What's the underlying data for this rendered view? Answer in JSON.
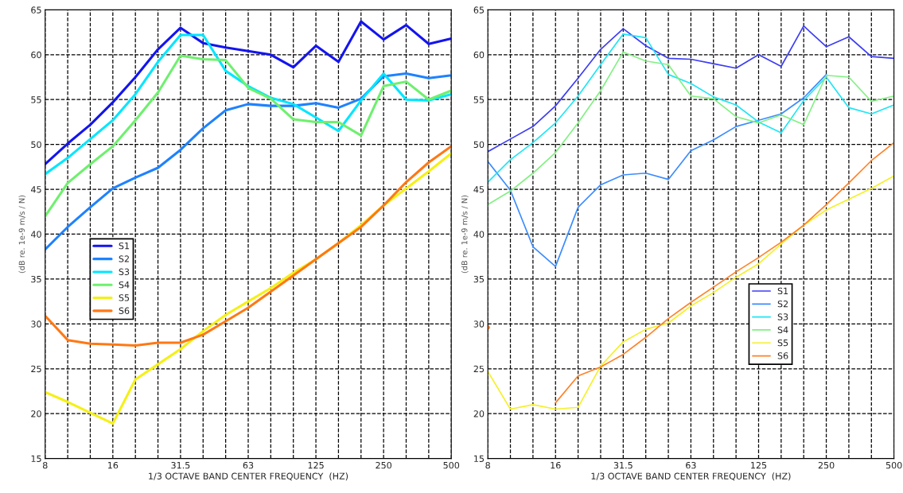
{
  "chart_data": [
    {
      "type": "line",
      "xlabel": "1/3 OCTAVE BAND CENTER FREQUENCY  (HZ)",
      "ylabel": "(dB re. 1e-9 m/s / N)",
      "categories": [
        "8",
        null,
        null,
        "16",
        null,
        null,
        "31.5",
        null,
        null,
        "63",
        null,
        null,
        "125",
        null,
        null,
        "250",
        null,
        null,
        "500"
      ],
      "ylim": [
        15,
        65
      ],
      "yticks": [
        15,
        20,
        25,
        30,
        35,
        40,
        45,
        50,
        55,
        60,
        65
      ],
      "grid": true,
      "legend": "left",
      "series": [
        {
          "name": "S1",
          "color": "#1414f0",
          "values": [
            47.8,
            50.1,
            52.2,
            54.7,
            57.5,
            60.6,
            63.0,
            61.3,
            60.8,
            60.4,
            60.0,
            58.6,
            61.0,
            59.2,
            63.7,
            61.7,
            63.3,
            61.2,
            61.8
          ]
        },
        {
          "name": "S2",
          "color": "#1e82ff",
          "values": [
            38.3,
            40.8,
            43.0,
            45.1,
            46.3,
            47.4,
            49.4,
            51.8,
            53.8,
            54.5,
            54.3,
            54.3,
            54.6,
            54.1,
            55.1,
            57.6,
            57.9,
            57.4,
            57.7
          ]
        },
        {
          "name": "S3",
          "color": "#00e6ff",
          "values": [
            46.7,
            48.5,
            50.6,
            52.7,
            55.6,
            59.2,
            62.2,
            62.2,
            58.2,
            56.5,
            55.2,
            54.5,
            53.0,
            51.5,
            54.9,
            57.9,
            55.0,
            54.9,
            55.6
          ]
        },
        {
          "name": "S4",
          "color": "#6ef06e",
          "values": [
            42.0,
            45.7,
            47.8,
            49.8,
            52.7,
            55.8,
            59.9,
            59.5,
            59.4,
            56.3,
            55.1,
            52.8,
            52.5,
            52.5,
            51.0,
            56.5,
            57.0,
            55.0,
            56.0
          ]
        },
        {
          "name": "S5",
          "color": "#f5f014",
          "values": [
            22.4,
            21.3,
            20.1,
            18.9,
            23.8,
            25.5,
            27.2,
            29.2,
            31.0,
            32.5,
            34.0,
            35.7,
            37.2,
            39.0,
            41.0,
            43.2,
            45.1,
            47.0,
            49.0
          ]
        },
        {
          "name": "S6",
          "color": "#ff7814",
          "values": [
            30.9,
            28.2,
            27.8,
            27.7,
            27.6,
            27.9,
            27.9,
            28.8,
            30.3,
            31.8,
            33.6,
            35.4,
            37.2,
            39.0,
            40.8,
            43.2,
            45.8,
            48.0,
            49.8
          ]
        }
      ]
    },
    {
      "type": "line",
      "xlabel": "1/3 OCTAVE BAND CENTER FREQUENCY  (HZ)",
      "ylabel": "(dB re. 1e-9 m/s / N)",
      "categories": [
        "8",
        null,
        null,
        "16",
        null,
        null,
        "31.5",
        null,
        null,
        "63",
        null,
        null,
        "125",
        null,
        null,
        "250",
        null,
        null,
        "500"
      ],
      "ylim": [
        15,
        65
      ],
      "yticks": [
        15,
        20,
        25,
        30,
        35,
        40,
        45,
        50,
        55,
        60,
        65
      ],
      "grid": true,
      "legend": "bottom right",
      "series": [
        {
          "name": "S1",
          "color": "#3c3cf5",
          "values": [
            49.2,
            50.6,
            52.0,
            54.3,
            57.4,
            60.6,
            62.9,
            61.0,
            59.6,
            59.5,
            59.0,
            58.5,
            60.0,
            58.7,
            63.2,
            60.9,
            62.0,
            59.8,
            59.6
          ]
        },
        {
          "name": "S2",
          "color": "#3c8cff",
          "values": [
            48.1,
            44.9,
            38.6,
            36.4,
            43.0,
            45.5,
            46.6,
            46.8,
            46.1,
            49.3,
            50.5,
            52.0,
            52.7,
            53.4,
            55.2,
            57.8,
            null,
            null,
            null
          ]
        },
        {
          "name": "S3",
          "color": "#1ee6f5",
          "values": [
            45.8,
            48.3,
            50.2,
            52.4,
            55.4,
            58.9,
            62.3,
            61.9,
            57.8,
            56.8,
            55.3,
            54.4,
            52.5,
            51.3,
            54.9,
            57.5,
            54.1,
            53.4,
            54.4
          ]
        },
        {
          "name": "S4",
          "color": "#82f082",
          "values": [
            43.3,
            44.8,
            46.8,
            49.1,
            52.4,
            56.0,
            60.3,
            59.3,
            58.9,
            55.4,
            55.1,
            53.1,
            52.4,
            53.3,
            52.2,
            57.7,
            57.5,
            54.8,
            55.4
          ]
        },
        {
          "name": "S5",
          "color": "#f5f028",
          "values": [
            24.7,
            20.5,
            21.0,
            20.5,
            20.7,
            25.3,
            28.0,
            29.4,
            30.1,
            32.0,
            33.5,
            35.2,
            36.7,
            38.9,
            41.0,
            42.7,
            43.9,
            45.1,
            46.5
          ]
        },
        {
          "name": "S6",
          "color": "#ff8228",
          "values": [
            29.6,
            null,
            null,
            21.2,
            24.2,
            25.2,
            26.6,
            28.5,
            30.6,
            32.4,
            34.1,
            35.8,
            37.4,
            39.1,
            41.0,
            43.3,
            45.7,
            48.2,
            50.2
          ]
        }
      ]
    }
  ]
}
